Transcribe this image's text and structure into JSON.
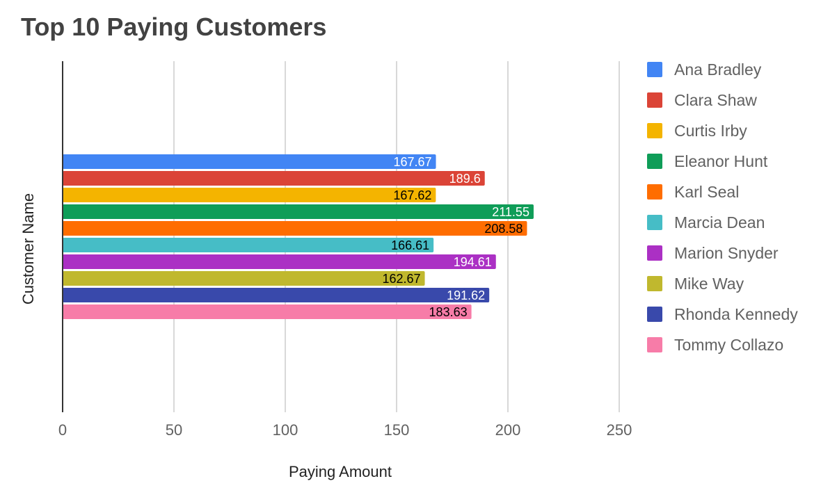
{
  "chart_data": {
    "type": "bar",
    "orientation": "horizontal",
    "title": "Top 10 Paying Customers",
    "xlabel": "Paying Amount",
    "ylabel": "Customer Name",
    "xlim": [
      0,
      250
    ],
    "xticks": [
      "0",
      "50",
      "100",
      "150",
      "200",
      "250"
    ],
    "grid": "vertical",
    "legend_position": "right",
    "series": [
      {
        "name": "Ana Bradley",
        "value": 167.67,
        "label": "167.67",
        "color": "#4285F4",
        "label_color": "#ffffff"
      },
      {
        "name": "Clara Shaw",
        "value": 189.6,
        "label": "189.6",
        "color": "#DB4437",
        "label_color": "#ffffff"
      },
      {
        "name": "Curtis Irby",
        "value": 167.62,
        "label": "167.62",
        "color": "#F4B400",
        "label_color": "#000000"
      },
      {
        "name": "Eleanor Hunt",
        "value": 211.55,
        "label": "211.55",
        "color": "#0F9D58",
        "label_color": "#ffffff"
      },
      {
        "name": "Karl Seal",
        "value": 208.58,
        "label": "208.58",
        "color": "#FF6D00",
        "label_color": "#000000"
      },
      {
        "name": "Marcia Dean",
        "value": 166.61,
        "label": "166.61",
        "color": "#46BDC6",
        "label_color": "#000000"
      },
      {
        "name": "Marion Snyder",
        "value": 194.61,
        "label": "194.61",
        "color": "#AB30C4",
        "label_color": "#ffffff"
      },
      {
        "name": "Mike Way",
        "value": 162.67,
        "label": "162.67",
        "color": "#C0B82E",
        "label_color": "#000000"
      },
      {
        "name": "Rhonda Kennedy",
        "value": 191.62,
        "label": "191.62",
        "color": "#3949AB",
        "label_color": "#ffffff"
      },
      {
        "name": "Tommy Collazo",
        "value": 183.63,
        "label": "183.63",
        "color": "#F77CA8",
        "label_color": "#000000"
      }
    ]
  }
}
